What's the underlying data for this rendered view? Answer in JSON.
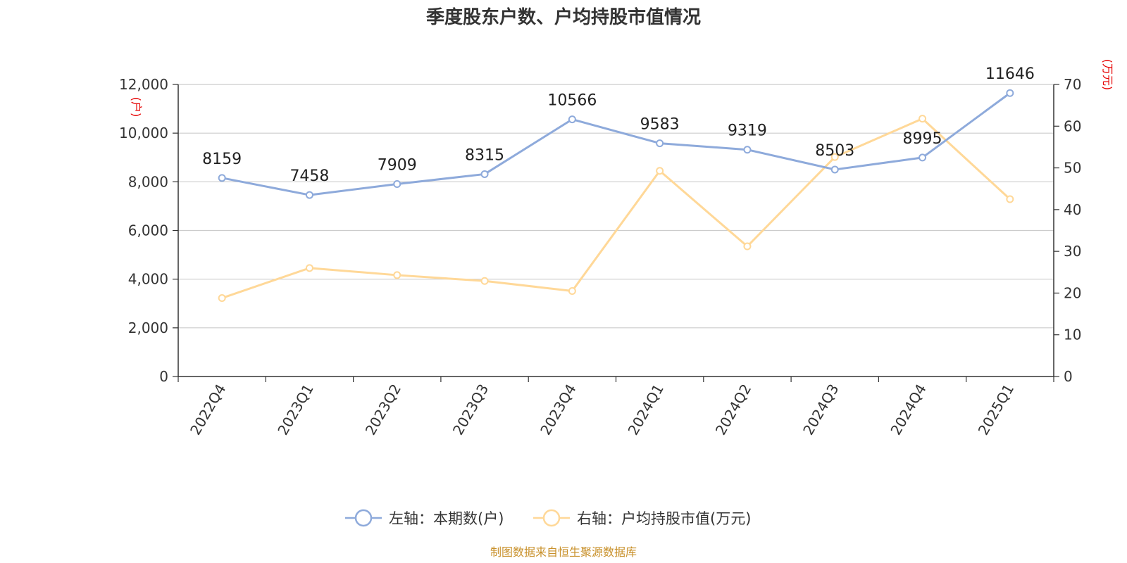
{
  "chart_data": {
    "type": "line",
    "title": "季度股东户数、户均持股市值情况",
    "categories": [
      "2022Q4",
      "2023Q1",
      "2023Q2",
      "2023Q3",
      "2023Q4",
      "2024Q1",
      "2024Q2",
      "2024Q3",
      "2024Q4",
      "2025Q1"
    ],
    "series": [
      {
        "name": "左轴：本期数(户)",
        "axis": "left",
        "color": "#8eaadb",
        "values": [
          8159,
          7458,
          7909,
          8315,
          10566,
          9583,
          9319,
          8503,
          8995,
          11646
        ],
        "labels": [
          "8159",
          "7458",
          "7909",
          "8315",
          "10566",
          "9583",
          "9319",
          "8503",
          "8995",
          "11646"
        ]
      },
      {
        "name": "右轴：户均持股市值(万元)",
        "axis": "right",
        "color": "#ffd898",
        "values": [
          18.8,
          26.0,
          24.3,
          22.9,
          20.5,
          49.3,
          31.2,
          52.6,
          61.8,
          42.5
        ]
      }
    ],
    "left_axis": {
      "unit": "(户)",
      "min": 0,
      "max": 12000,
      "ticks": [
        0,
        2000,
        4000,
        6000,
        8000,
        10000,
        12000
      ],
      "tick_labels": [
        "0",
        "2,000",
        "4,000",
        "6,000",
        "8,000",
        "10,000",
        "12,000"
      ]
    },
    "right_axis": {
      "unit": "(万元)",
      "min": 0,
      "max": 70,
      "ticks": [
        0,
        10,
        20,
        30,
        40,
        50,
        60,
        70
      ],
      "tick_labels": [
        "0",
        "10",
        "20",
        "30",
        "40",
        "50",
        "60",
        "70"
      ]
    },
    "grid": true,
    "legend_position": "bottom-center",
    "source": "制图数据来自恒生聚源数据库"
  },
  "colors": {
    "axis": "#333333",
    "grid": "#cccccc",
    "unit": "#e60000",
    "source": "#c8902a"
  }
}
